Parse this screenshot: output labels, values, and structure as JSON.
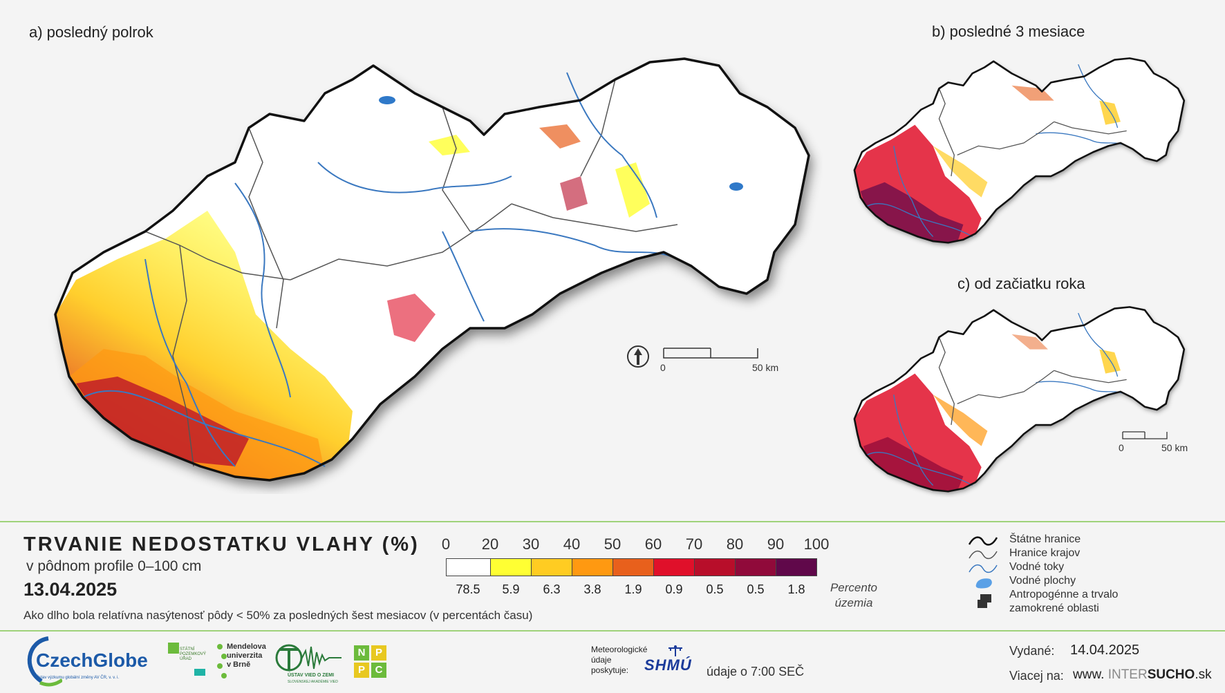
{
  "panels": {
    "a_title": "a) posledný polrok",
    "b_title": "b) posledné 3 mesiace",
    "c_title": "c) od začiatku roka"
  },
  "scale_bar": {
    "main": {
      "start": "0",
      "end": "50  km"
    },
    "small": {
      "start": "0",
      "end": "50 km"
    }
  },
  "legend": {
    "title": "TRVANIE NEDOSTATKU VLAHY (%)",
    "subtitle": "v pôdnom profile 0–100 cm",
    "date": "13.04.2025",
    "description": "Ako dlho bola relatívna nasýtenosť pôdy < 50% za posledných šest mesiacov (v percentách času)",
    "ticks": [
      "0",
      "20",
      "30",
      "40",
      "50",
      "60",
      "70",
      "80",
      "90",
      "100"
    ],
    "classes": [
      {
        "color": "#ffffff",
        "percent": "78.5"
      },
      {
        "color": "#ffff33",
        "percent": "5.9"
      },
      {
        "color": "#ffcc22",
        "percent": "6.3"
      },
      {
        "color": "#ff9911",
        "percent": "3.8"
      },
      {
        "color": "#e8601c",
        "percent": "1.9"
      },
      {
        "color": "#e0102a",
        "percent": "0.9"
      },
      {
        "color": "#b80e2a",
        "percent": "0.5"
      },
      {
        "color": "#900a3a",
        "percent": "0.5"
      },
      {
        "color": "#60084a",
        "percent": "1.8"
      }
    ],
    "percent_caption_1": "Percento",
    "percent_caption_2": "územia"
  },
  "symbols": {
    "state_border": "Štátne hranice",
    "region_border": "Hranice krajov",
    "rivers": "Vodné toky",
    "water_bodies": "Vodné plochy",
    "anthro_1": "Antropogénne a trvalo",
    "anthro_2": "zamokrené oblasti"
  },
  "footer": {
    "czechglobe": "CzechGlobe",
    "czechglobe_sub": "Ústav výzkumu globální změny AV ČR, v. v. i.",
    "spu_1": "STÁTNÍ",
    "spu_2": "POZEMKOVÝ",
    "spu_3": "ÚŘAD",
    "mendel_1": "Mendelova",
    "mendel_2": "univerzita",
    "mendel_3": "v Brně",
    "uvz": "ÚSTAV VIED O ZEMI",
    "uvz_sub": "SLOVENSKEJ AKADÉMIE VIED",
    "nppc": [
      "N",
      "P",
      "P",
      "C"
    ],
    "met_1": "Meteorologické",
    "met_2": "údaje",
    "met_3": "poskytuje:",
    "shmu": "SHMÚ",
    "time_note": "údaje o 7:00 SEČ",
    "issued_label": "Vydané:",
    "issued_date": "14.04.2025",
    "more_label": "Viacej na:",
    "site_prefix": "www.",
    "site_inter": "INTER",
    "site_sucho": "SUCHO",
    "site_suffix": ".sk"
  },
  "colors": {
    "accent_green": "#9fd27a",
    "river": "#3a78c0",
    "border": "#111111"
  }
}
